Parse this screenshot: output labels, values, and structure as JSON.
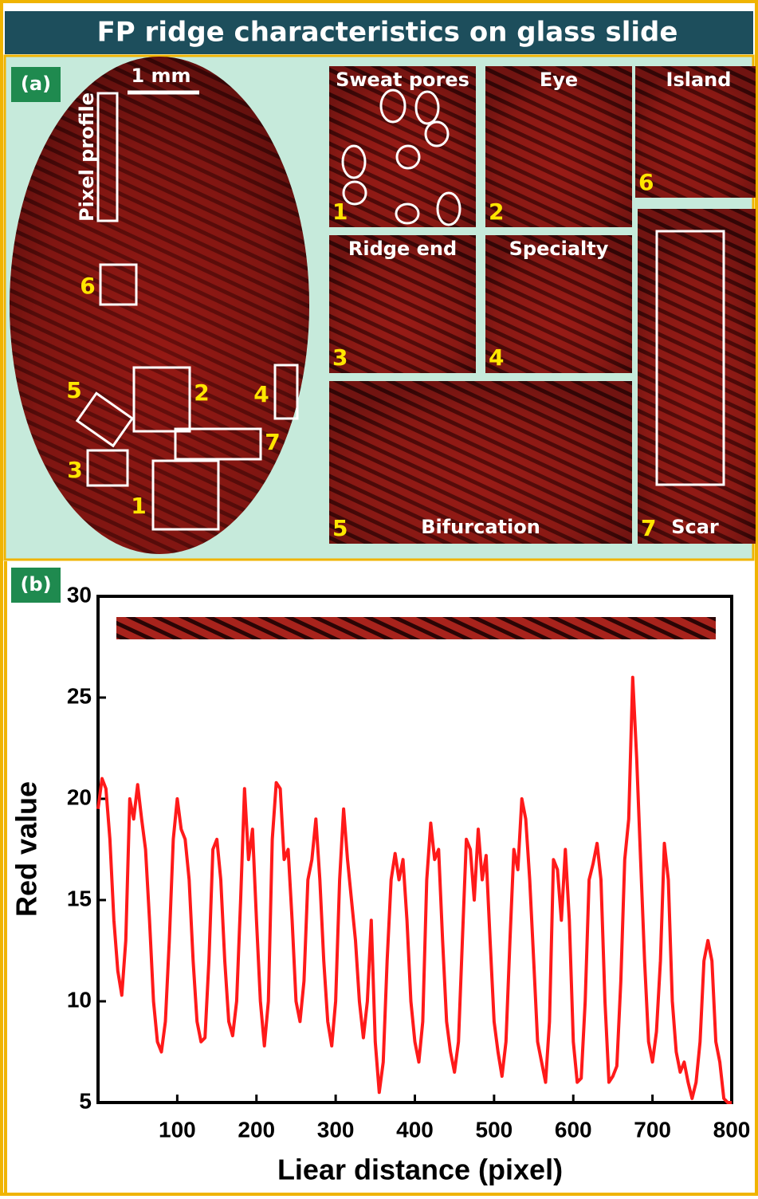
{
  "header": {
    "title": "FP ridge characteristics on glass slide"
  },
  "panel_a": {
    "label": "(a)",
    "scale_bar": "1 mm",
    "pixel_profile": "Pixel profile",
    "insets": [
      {
        "number": "1",
        "label": "Sweat pores"
      },
      {
        "number": "2",
        "label": "Eye"
      },
      {
        "number": "3",
        "label": "Ridge end"
      },
      {
        "number": "4",
        "label": "Specialty"
      },
      {
        "number": "5",
        "label": "Bifurcation"
      },
      {
        "number": "6",
        "label": "Island"
      },
      {
        "number": "7",
        "label": "Scar"
      }
    ]
  },
  "chart_data": {
    "type": "line",
    "panel_label": "(b)",
    "xlabel": "Liear distance (pixel)",
    "ylabel": "Red value",
    "xlim": [
      0,
      800
    ],
    "ylim": [
      5,
      30
    ],
    "xticks": [
      100,
      200,
      300,
      400,
      500,
      600,
      700,
      800
    ],
    "yticks": [
      5,
      10,
      15,
      20,
      25,
      30
    ],
    "series": [
      {
        "color": "#ff1a1a",
        "x": [
          0,
          5,
          10,
          15,
          20,
          25,
          30,
          35,
          40,
          45,
          50,
          55,
          60,
          65,
          70,
          75,
          80,
          85,
          90,
          95,
          100,
          105,
          110,
          115,
          120,
          125,
          130,
          135,
          140,
          145,
          150,
          155,
          160,
          165,
          170,
          175,
          180,
          185,
          190,
          195,
          200,
          205,
          210,
          215,
          220,
          225,
          230,
          235,
          240,
          245,
          250,
          255,
          260,
          265,
          270,
          275,
          280,
          285,
          290,
          295,
          300,
          305,
          310,
          315,
          320,
          325,
          330,
          335,
          340,
          345,
          350,
          355,
          360,
          365,
          370,
          375,
          380,
          385,
          390,
          395,
          400,
          405,
          410,
          415,
          420,
          425,
          430,
          435,
          440,
          445,
          450,
          455,
          460,
          465,
          470,
          475,
          480,
          485,
          490,
          495,
          500,
          505,
          510,
          515,
          520,
          525,
          530,
          535,
          540,
          545,
          550,
          555,
          560,
          565,
          570,
          575,
          580,
          585,
          590,
          595,
          600,
          605,
          610,
          615,
          620,
          625,
          630,
          635,
          640,
          645,
          650,
          655,
          660,
          665,
          670,
          675,
          680,
          685,
          690,
          695,
          700,
          705,
          710,
          715,
          720,
          725,
          730,
          735,
          740,
          745,
          750,
          755,
          760,
          765,
          770,
          775,
          780,
          785,
          790,
          795,
          800
        ],
        "values": [
          19.5,
          21,
          20.5,
          18,
          14,
          11.5,
          10.3,
          13,
          20,
          19,
          20.7,
          19,
          17.5,
          14,
          10,
          8,
          7.5,
          9,
          13,
          18,
          20,
          18.5,
          18,
          16,
          12,
          9,
          8,
          8.2,
          12,
          17.5,
          18,
          16,
          12,
          9,
          8.3,
          10,
          15,
          20.5,
          17,
          18.5,
          14,
          10,
          7.8,
          10,
          18,
          20.8,
          20.5,
          17,
          17.5,
          14,
          10,
          9,
          11,
          16,
          17,
          19,
          16,
          12,
          9,
          7.8,
          10,
          16,
          19.5,
          17,
          15,
          13,
          10,
          8.2,
          10,
          14,
          8,
          5.5,
          7,
          12,
          16,
          17.3,
          16,
          17,
          14,
          10,
          8,
          7,
          9,
          16,
          18.8,
          17,
          17.5,
          13,
          9,
          7.5,
          6.5,
          8,
          13,
          18,
          17.5,
          15,
          18.5,
          16,
          17.2,
          13,
          9,
          7.5,
          6.3,
          8,
          13,
          17.5,
          16.5,
          20,
          19,
          16,
          12,
          8,
          7,
          6,
          9,
          17,
          16.5,
          14,
          17.5,
          14,
          8,
          6,
          6.2,
          10,
          16,
          16.8,
          17.8,
          16,
          10,
          6,
          6.3,
          6.8,
          11,
          17,
          19,
          26,
          22,
          17,
          12,
          8,
          7,
          8.5,
          12,
          17.8,
          16,
          10,
          7.5,
          6.5,
          7,
          6,
          5.2,
          6,
          8,
          12,
          13,
          12,
          8,
          7,
          5.2,
          5,
          5
        ]
      }
    ]
  }
}
